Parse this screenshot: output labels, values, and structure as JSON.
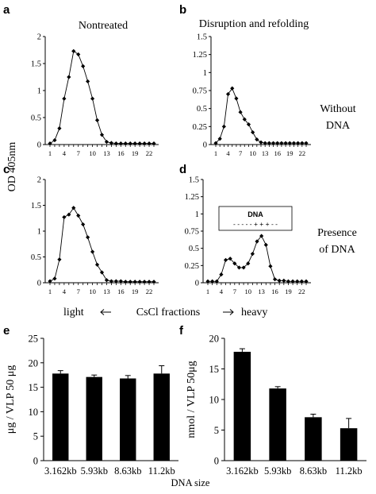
{
  "figure": {
    "y_axis_label_top": "OD 405nm",
    "x_axis_caption": {
      "left": "light",
      "center": "CsCl fractions",
      "right": "heavy"
    },
    "row_labels": {
      "without": [
        "Without",
        "DNA"
      ],
      "presence": [
        "Presence",
        "of DNA"
      ]
    },
    "bottom_caption": "DNA size"
  },
  "chart_data": [
    {
      "panel": "a",
      "type": "line",
      "title": "Nontreated",
      "x": [
        1,
        2,
        3,
        4,
        5,
        6,
        7,
        8,
        9,
        10,
        11,
        12,
        13,
        14,
        15,
        16,
        17,
        18,
        19,
        20,
        21,
        22,
        23
      ],
      "xticks": [
        "1",
        "4",
        "7",
        "10",
        "13",
        "16",
        "19",
        "22"
      ],
      "y": [
        0.02,
        0.08,
        0.3,
        0.85,
        1.25,
        1.73,
        1.67,
        1.45,
        1.17,
        0.85,
        0.45,
        0.18,
        0.05,
        0.03,
        0.02,
        0.02,
        0.02,
        0.02,
        0.02,
        0.02,
        0.02,
        0.02,
        0.02
      ],
      "yticks": [
        "0",
        "0.5",
        "1",
        "1.5",
        "2"
      ],
      "ylim": [
        0,
        2
      ]
    },
    {
      "panel": "b",
      "type": "line",
      "title": "Disruption and refolding",
      "x": [
        1,
        2,
        3,
        4,
        5,
        6,
        7,
        8,
        9,
        10,
        11,
        12,
        13,
        14,
        15,
        16,
        17,
        18,
        19,
        20,
        21,
        22,
        23
      ],
      "xticks": [
        "1",
        "4",
        "7",
        "10",
        "13",
        "16",
        "19",
        "22"
      ],
      "y": [
        0.02,
        0.08,
        0.25,
        0.7,
        0.78,
        0.64,
        0.45,
        0.35,
        0.28,
        0.17,
        0.07,
        0.03,
        0.02,
        0.02,
        0.02,
        0.02,
        0.02,
        0.02,
        0.02,
        0.02,
        0.02,
        0.02,
        0.02
      ],
      "yticks": [
        "0",
        "0.25",
        "0.5",
        "0.75",
        "1",
        "1.25",
        "1.5"
      ],
      "ylim": [
        0,
        1.5
      ]
    },
    {
      "panel": "c",
      "type": "line",
      "title": "",
      "x": [
        1,
        2,
        3,
        4,
        5,
        6,
        7,
        8,
        9,
        10,
        11,
        12,
        13,
        14,
        15,
        16,
        17,
        18,
        19,
        20,
        21,
        22,
        23
      ],
      "xticks": [
        "1",
        "4",
        "7",
        "10",
        "13",
        "16",
        "19",
        "22"
      ],
      "y": [
        0.03,
        0.08,
        0.45,
        1.27,
        1.32,
        1.45,
        1.3,
        1.13,
        0.88,
        0.6,
        0.35,
        0.2,
        0.05,
        0.03,
        0.03,
        0.03,
        0.02,
        0.02,
        0.02,
        0.02,
        0.02,
        0.02,
        0.02
      ],
      "yticks": [
        "0",
        "0.5",
        "1",
        "1.5",
        "2"
      ],
      "ylim": [
        0,
        2
      ]
    },
    {
      "panel": "d",
      "type": "line",
      "title": "",
      "x": [
        1,
        2,
        3,
        4,
        5,
        6,
        7,
        8,
        9,
        10,
        11,
        12,
        13,
        14,
        15,
        16,
        17,
        18,
        19,
        20,
        21,
        22,
        23
      ],
      "xticks": [
        "1",
        "4",
        "7",
        "10",
        "13",
        "16",
        "19",
        "22"
      ],
      "y": [
        0.02,
        0.02,
        0.02,
        0.12,
        0.33,
        0.35,
        0.28,
        0.22,
        0.22,
        0.28,
        0.42,
        0.6,
        0.68,
        0.55,
        0.24,
        0.05,
        0.03,
        0.03,
        0.02,
        0.02,
        0.02,
        0.02,
        0.02
      ],
      "yticks": [
        "0",
        "0.25",
        "0.5",
        "0.75",
        "1",
        "1.25",
        "1.5"
      ],
      "ylim": [
        0,
        1.5
      ],
      "inset_legend": {
        "title": "DNA",
        "pattern": "- - - - - + + + - -"
      }
    },
    {
      "panel": "e",
      "type": "bar",
      "title": "",
      "categories": [
        "3.162kb",
        "5.93kb",
        "8.63kb",
        "11.2kb"
      ],
      "values": [
        17.8,
        17.1,
        16.8,
        17.8
      ],
      "errors": [
        0.6,
        0.4,
        0.6,
        1.6
      ],
      "ylabel": "μg / VLP 50 μg",
      "yticks": [
        "0",
        "5",
        "10",
        "15",
        "20",
        "25"
      ],
      "ylim": [
        0,
        25
      ]
    },
    {
      "panel": "f",
      "type": "bar",
      "title": "",
      "categories": [
        "3.162kb",
        "5.93kb",
        "8.63kb",
        "11.2kb"
      ],
      "values": [
        17.8,
        11.8,
        7.1,
        5.3
      ],
      "errors": [
        0.5,
        0.3,
        0.5,
        1.6
      ],
      "ylabel": "nmol / VLP 50μg",
      "yticks": [
        "0",
        "5",
        "10",
        "15",
        "20"
      ],
      "ylim": [
        0,
        20
      ]
    }
  ]
}
